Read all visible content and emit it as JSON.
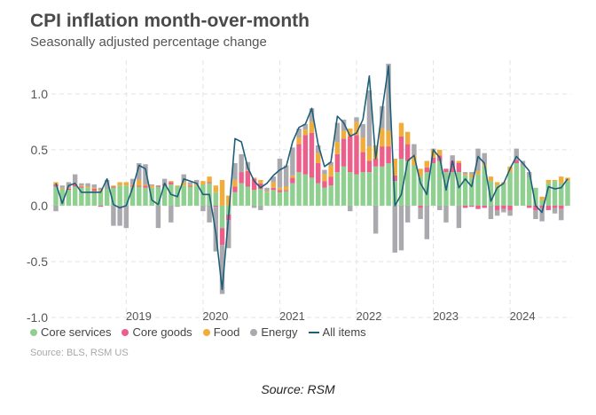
{
  "title": "CPI inflation month-over-month",
  "subtitle": "Seasonally adjusted percentage change",
  "source": "Source: BLS, RSM US",
  "caption": "Source: RSM",
  "colors": {
    "core_services": "#8fcf8f",
    "core_goods": "#ec5f8a",
    "food": "#f0ad3c",
    "energy": "#a9a9ae",
    "all_items": "#1f5f7a",
    "grid": "#e3e3e3",
    "axis_text": "#555555"
  },
  "legend": [
    {
      "key": "core_services",
      "label": "Core services",
      "marker": "dot"
    },
    {
      "key": "core_goods",
      "label": "Core goods",
      "marker": "dot"
    },
    {
      "key": "food",
      "label": "Food",
      "marker": "dot"
    },
    {
      "key": "energy",
      "label": "Energy",
      "marker": "dot"
    },
    {
      "key": "all_items",
      "label": "All items",
      "marker": "line"
    }
  ],
  "chart_data": {
    "type": "bar",
    "stacked": true,
    "grid": true,
    "legend_position": "bottom-left",
    "x_start": "2018-02",
    "x_end": "2024-10",
    "x_ticks": [
      "2019",
      "2020",
      "2021",
      "2022",
      "2023",
      "2024"
    ],
    "y_ticks": [
      "-1.0",
      "-0.5",
      "0.0",
      "0.5",
      "1.0"
    ],
    "ylim": [
      -1.0,
      1.3
    ],
    "categories": [
      "2018-02",
      "2018-03",
      "2018-04",
      "2018-05",
      "2018-06",
      "2018-07",
      "2018-08",
      "2018-09",
      "2018-10",
      "2018-11",
      "2018-12",
      "2019-01",
      "2019-02",
      "2019-03",
      "2019-04",
      "2019-05",
      "2019-06",
      "2019-07",
      "2019-08",
      "2019-09",
      "2019-10",
      "2019-11",
      "2019-12",
      "2020-01",
      "2020-02",
      "2020-03",
      "2020-04",
      "2020-05",
      "2020-06",
      "2020-07",
      "2020-08",
      "2020-09",
      "2020-10",
      "2020-11",
      "2020-12",
      "2021-01",
      "2021-02",
      "2021-03",
      "2021-04",
      "2021-05",
      "2021-06",
      "2021-07",
      "2021-08",
      "2021-09",
      "2021-10",
      "2021-11",
      "2021-12",
      "2022-01",
      "2022-02",
      "2022-03",
      "2022-04",
      "2022-05",
      "2022-06",
      "2022-07",
      "2022-08",
      "2022-09",
      "2022-10",
      "2022-11",
      "2022-12",
      "2023-01",
      "2023-02",
      "2023-03",
      "2023-04",
      "2023-05",
      "2023-06",
      "2023-07",
      "2023-08",
      "2023-09",
      "2023-10",
      "2023-11",
      "2023-12",
      "2024-01",
      "2024-02",
      "2024-03",
      "2024-04",
      "2024-05",
      "2024-06",
      "2024-07",
      "2024-08",
      "2024-09",
      "2024-10"
    ],
    "series": [
      {
        "name": "Core services",
        "key": "core_services",
        "values": [
          0.17,
          0.15,
          0.14,
          0.17,
          0.16,
          0.16,
          0.13,
          0.12,
          0.15,
          0.16,
          0.18,
          0.18,
          0.17,
          0.17,
          0.16,
          0.16,
          0.17,
          0.18,
          0.19,
          0.17,
          0.18,
          0.17,
          0.18,
          0.19,
          0.2,
          0.12,
          -0.2,
          -0.08,
          0.12,
          0.2,
          0.17,
          0.14,
          0.15,
          0.12,
          0.14,
          0.12,
          0.13,
          0.2,
          0.3,
          0.28,
          0.25,
          0.2,
          0.16,
          0.18,
          0.3,
          0.35,
          0.3,
          0.28,
          0.3,
          0.3,
          0.35,
          0.35,
          0.38,
          0.22,
          0.42,
          0.4,
          0.36,
          0.26,
          0.3,
          0.38,
          0.4,
          0.3,
          0.3,
          0.3,
          0.27,
          0.25,
          0.28,
          0.35,
          0.22,
          0.18,
          0.2,
          0.3,
          0.38,
          0.35,
          0.25,
          0.16,
          0.05,
          0.2,
          0.22,
          0.2,
          0.22
        ]
      },
      {
        "name": "Core goods",
        "key": "core_goods",
        "values": [
          0.02,
          0.0,
          0.01,
          0.02,
          0.01,
          0.0,
          0.02,
          -0.01,
          0.0,
          0.01,
          0.0,
          0.0,
          0.01,
          0.01,
          0.02,
          0.0,
          0.01,
          0.01,
          0.02,
          0.0,
          0.0,
          0.01,
          0.0,
          0.0,
          0.01,
          -0.01,
          -0.15,
          -0.05,
          0.05,
          0.1,
          0.14,
          0.1,
          0.05,
          0.0,
          0.02,
          0.02,
          0.01,
          0.05,
          0.25,
          0.35,
          0.4,
          0.18,
          0.06,
          0.08,
          0.16,
          0.25,
          0.32,
          0.35,
          0.18,
          0.1,
          0.07,
          0.18,
          0.15,
          0.05,
          0.2,
          0.15,
          0.0,
          -0.02,
          0.04,
          0.05,
          0.05,
          0.03,
          0.1,
          0.08,
          -0.02,
          -0.01,
          -0.03,
          -0.02,
          0.0,
          -0.04,
          -0.03,
          -0.04,
          0.03,
          0.0,
          -0.02,
          -0.04,
          -0.02,
          -0.04,
          -0.02,
          -0.03,
          0.0
        ]
      },
      {
        "name": "Food",
        "key": "food",
        "values": [
          0.02,
          0.01,
          0.01,
          0.01,
          0.01,
          0.01,
          0.01,
          0.02,
          0.0,
          0.01,
          0.03,
          0.03,
          0.01,
          0.05,
          0.01,
          0.02,
          0.0,
          0.0,
          0.01,
          0.01,
          0.03,
          0.01,
          0.01,
          0.03,
          0.05,
          0.06,
          0.23,
          0.09,
          0.06,
          0.0,
          0.01,
          0.01,
          0.03,
          0.01,
          0.05,
          0.02,
          0.03,
          0.02,
          0.06,
          0.05,
          0.1,
          0.09,
          0.06,
          0.1,
          0.11,
          0.07,
          0.07,
          0.12,
          0.13,
          0.13,
          0.12,
          0.16,
          0.14,
          0.15,
          0.12,
          0.11,
          0.09,
          0.07,
          0.06,
          0.07,
          0.05,
          0.0,
          0.0,
          0.02,
          0.01,
          0.03,
          0.03,
          0.02,
          0.04,
          0.03,
          0.01,
          0.05,
          0.0,
          0.0,
          0.0,
          0.0,
          0.03,
          0.03,
          0.01,
          0.06,
          0.03
        ]
      },
      {
        "name": "Energy",
        "key": "energy",
        "values": [
          -0.05,
          0.02,
          0.05,
          0.08,
          0.02,
          0.03,
          0.03,
          0.02,
          0.08,
          -0.18,
          -0.18,
          -0.2,
          0.05,
          0.15,
          0.18,
          0.01,
          -0.2,
          0.05,
          -0.15,
          -0.01,
          0.07,
          0.02,
          0.04,
          -0.05,
          -0.15,
          -0.4,
          -0.44,
          -0.25,
          0.15,
          0.16,
          0.07,
          -0.02,
          -0.04,
          0.03,
          0.05,
          0.26,
          0.19,
          0.25,
          0.08,
          0.05,
          0.12,
          0.07,
          0.04,
          0.03,
          0.17,
          0.1,
          -0.05,
          0.04,
          0.12,
          0.5,
          -0.25,
          0.2,
          0.6,
          -0.42,
          -0.4,
          -0.15,
          0.1,
          -0.1,
          -0.3,
          0.01,
          -0.04,
          -0.15,
          0.05,
          -0.2,
          0.02,
          0.02,
          0.2,
          0.1,
          -0.12,
          -0.05,
          -0.03,
          -0.05,
          0.1,
          0.05,
          0.05,
          -0.08,
          -0.12,
          0.0,
          -0.05,
          -0.1,
          0.0
        ]
      },
      {
        "name": "All items",
        "key": "all_items",
        "type": "line",
        "values": [
          0.2,
          0.02,
          0.18,
          0.2,
          0.12,
          0.12,
          0.12,
          0.12,
          0.24,
          0.01,
          -0.02,
          0.0,
          0.16,
          0.36,
          0.33,
          0.05,
          0.01,
          0.2,
          0.1,
          0.08,
          0.24,
          0.22,
          0.2,
          0.1,
          0.1,
          -0.24,
          -0.75,
          -0.1,
          0.6,
          0.57,
          0.34,
          0.22,
          0.16,
          0.2,
          0.27,
          0.32,
          0.35,
          0.57,
          0.7,
          0.73,
          0.87,
          0.55,
          0.35,
          0.39,
          0.8,
          0.74,
          0.62,
          0.65,
          0.77,
          1.16,
          0.42,
          0.85,
          1.25,
          0.0,
          0.1,
          0.4,
          0.45,
          0.2,
          0.1,
          0.5,
          0.43,
          0.14,
          0.4,
          0.16,
          0.24,
          0.17,
          0.44,
          0.38,
          0.04,
          0.16,
          0.2,
          0.33,
          0.44,
          0.38,
          0.31,
          0.0,
          -0.06,
          0.17,
          0.15,
          0.16,
          0.24
        ]
      }
    ]
  }
}
